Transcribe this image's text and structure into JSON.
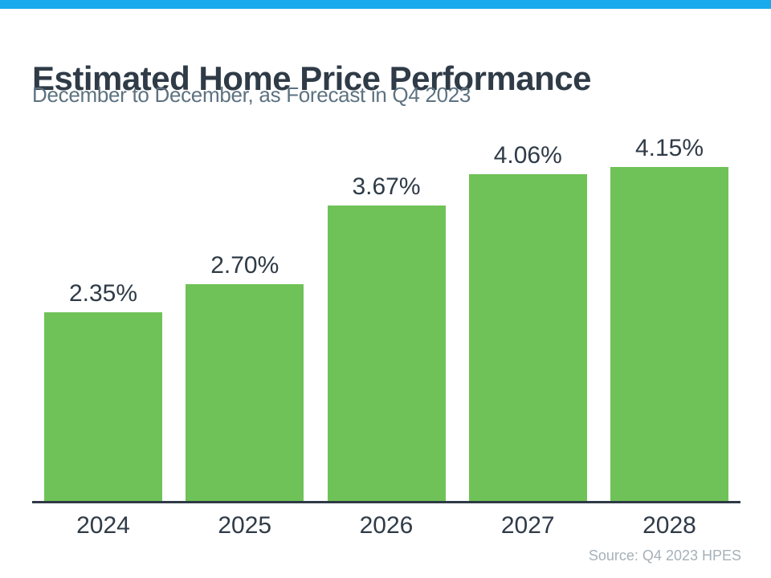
{
  "header": {
    "title": "Estimated Home Price Performance",
    "subtitle": "December to December, as Forecast in Q4 2023"
  },
  "chart_data": {
    "type": "bar",
    "title": "Estimated Home Price Performance",
    "subtitle": "December to December, as Forecast in Q4 2023",
    "categories": [
      "2024",
      "2025",
      "2026",
      "2027",
      "2028"
    ],
    "values": [
      2.35,
      2.7,
      3.67,
      4.06,
      4.15
    ],
    "value_labels": [
      "2.35%",
      "2.70%",
      "3.67%",
      "4.06%",
      "4.15%"
    ],
    "xlabel": "",
    "ylabel": "",
    "ylim": [
      0,
      4.5
    ],
    "grid": false,
    "legend": null,
    "bar_color": "#6fc257",
    "value_label_color": "#2f3b47",
    "category_label_color": "#2f3b47",
    "axis_color": "#2e3a45"
  },
  "colors": {
    "top_accent_bar": "#18aaec",
    "title_text": "#2f3b47",
    "subtitle_text": "#5d7280",
    "source_text": "#a6b1b9",
    "background": "#ffffff"
  },
  "footer": {
    "source": "Source: Q4 2023 HPES"
  }
}
